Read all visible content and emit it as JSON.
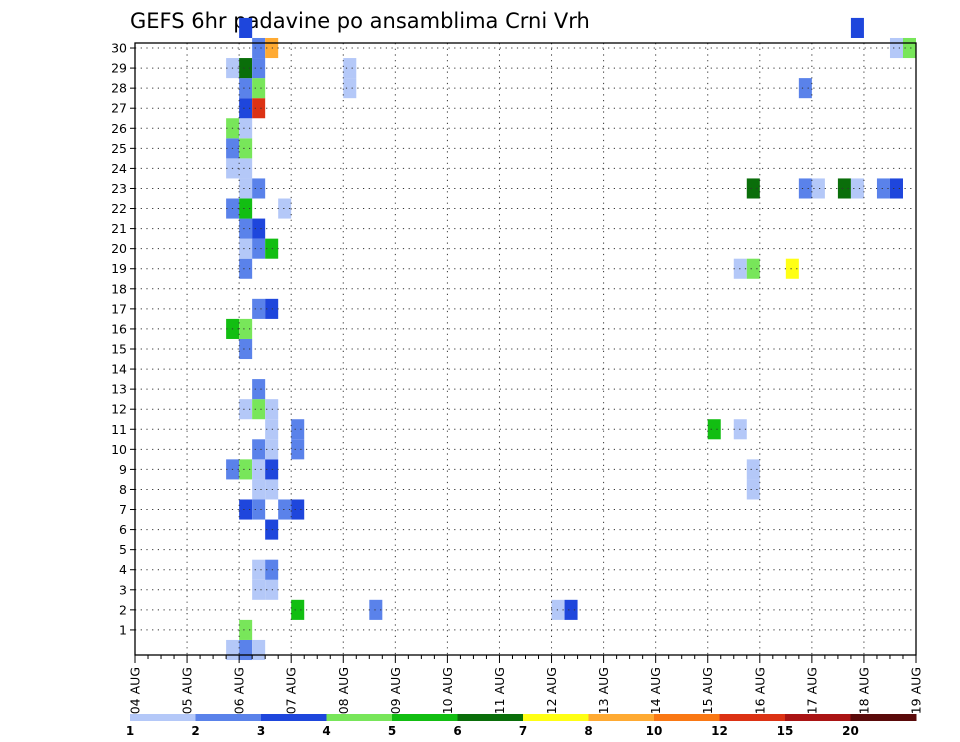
{
  "chart_data": {
    "type": "heatmap",
    "title": "GEFS 6hr padavine po ansamblima Crni Vrh",
    "xlabel": "",
    "ylabel": "",
    "x_tick_labels": [
      "04 AUG",
      "05 AUG",
      "06 AUG",
      "07 AUG",
      "08 AUG",
      "09 AUG",
      "10 AUG",
      "11 AUG",
      "12 AUG",
      "13 AUG",
      "14 AUG",
      "15 AUG",
      "16 AUG",
      "17 AUG",
      "18 AUG",
      "19 AUG"
    ],
    "x_time_step_hours": 6,
    "y_tick_labels": [
      "1",
      "2",
      "3",
      "4",
      "5",
      "6",
      "7",
      "8",
      "9",
      "10",
      "11",
      "12",
      "13",
      "14",
      "15",
      "16",
      "17",
      "18",
      "19",
      "20",
      "21",
      "22",
      "23",
      "24",
      "25",
      "26",
      "27",
      "28",
      "29",
      "30"
    ],
    "ylim": [
      0,
      30
    ],
    "grid": true,
    "legend_position": "bottom",
    "colorbar": {
      "tick_labels": [
        "1",
        "2",
        "3",
        "4",
        "5",
        "6",
        "7",
        "8",
        "10",
        "12",
        "15",
        "20"
      ],
      "colors": [
        "#b4c8f8",
        "#5a82ea",
        "#1e46dc",
        "#78e65a",
        "#12be12",
        "#0a6e0a",
        "#ffff14",
        "#ffaa32",
        "#fa7814",
        "#dc3214",
        "#aa1414",
        "#5a0a0a"
      ]
    },
    "cells": [
      {
        "t": 7,
        "m": 0,
        "level": 1
      },
      {
        "t": 8,
        "m": 0,
        "level": 2
      },
      {
        "t": 9,
        "m": 0,
        "level": 1
      },
      {
        "t": 8,
        "m": 1,
        "level": 4
      },
      {
        "t": 12,
        "m": 2,
        "level": 5
      },
      {
        "t": 9,
        "m": 3,
        "level": 1
      },
      {
        "t": 10,
        "m": 3,
        "level": 1
      },
      {
        "t": 9,
        "m": 4,
        "level": 1
      },
      {
        "t": 10,
        "m": 4,
        "level": 2
      },
      {
        "t": 10,
        "m": 6,
        "level": 3
      },
      {
        "t": 8,
        "m": 7,
        "level": 3
      },
      {
        "t": 9,
        "m": 7,
        "level": 2
      },
      {
        "t": 11,
        "m": 7,
        "level": 2
      },
      {
        "t": 12,
        "m": 7,
        "level": 3
      },
      {
        "t": 9,
        "m": 8,
        "level": 1
      },
      {
        "t": 10,
        "m": 8,
        "level": 1
      },
      {
        "t": 7,
        "m": 9,
        "level": 2
      },
      {
        "t": 8,
        "m": 9,
        "level": 4
      },
      {
        "t": 9,
        "m": 9,
        "level": 1
      },
      {
        "t": 10,
        "m": 9,
        "level": 3
      },
      {
        "t": 9,
        "m": 10,
        "level": 2
      },
      {
        "t": 10,
        "m": 10,
        "level": 1
      },
      {
        "t": 12,
        "m": 10,
        "level": 2
      },
      {
        "t": 10,
        "m": 11,
        "level": 1
      },
      {
        "t": 12,
        "m": 11,
        "level": 2
      },
      {
        "t": 8,
        "m": 12,
        "level": 1
      },
      {
        "t": 9,
        "m": 12,
        "level": 4
      },
      {
        "t": 10,
        "m": 12,
        "level": 1
      },
      {
        "t": 9,
        "m": 13,
        "level": 2
      },
      {
        "t": 8,
        "m": 15,
        "level": 2
      },
      {
        "t": 7,
        "m": 16,
        "level": 5
      },
      {
        "t": 8,
        "m": 16,
        "level": 4
      },
      {
        "t": 9,
        "m": 17,
        "level": 2
      },
      {
        "t": 10,
        "m": 17,
        "level": 3
      },
      {
        "t": 8,
        "m": 19,
        "level": 2
      },
      {
        "t": 8,
        "m": 20,
        "level": 1
      },
      {
        "t": 9,
        "m": 20,
        "level": 2
      },
      {
        "t": 10,
        "m": 20,
        "level": 5
      },
      {
        "t": 8,
        "m": 21,
        "level": 2
      },
      {
        "t": 9,
        "m": 21,
        "level": 3
      },
      {
        "t": 7,
        "m": 22,
        "level": 2
      },
      {
        "t": 8,
        "m": 22,
        "level": 5
      },
      {
        "t": 11,
        "m": 22,
        "level": 1
      },
      {
        "t": 8,
        "m": 23,
        "level": 1
      },
      {
        "t": 9,
        "m": 23,
        "level": 2
      },
      {
        "t": 7,
        "m": 24,
        "level": 1
      },
      {
        "t": 8,
        "m": 24,
        "level": 1
      },
      {
        "t": 7,
        "m": 25,
        "level": 2
      },
      {
        "t": 8,
        "m": 25,
        "level": 4
      },
      {
        "t": 7,
        "m": 26,
        "level": 4
      },
      {
        "t": 8,
        "m": 26,
        "level": 1
      },
      {
        "t": 8,
        "m": 27,
        "level": 3
      },
      {
        "t": 9,
        "m": 27,
        "level": 10
      },
      {
        "t": 8,
        "m": 28,
        "level": 2
      },
      {
        "t": 9,
        "m": 28,
        "level": 4
      },
      {
        "t": 16,
        "m": 28,
        "level": 1
      },
      {
        "t": 7,
        "m": 29,
        "level": 1
      },
      {
        "t": 8,
        "m": 29,
        "level": 6
      },
      {
        "t": 9,
        "m": 29,
        "level": 2
      },
      {
        "t": 16,
        "m": 29,
        "level": 1
      },
      {
        "t": 9,
        "m": 30,
        "level": 2
      },
      {
        "t": 10,
        "m": 30,
        "level": 8
      },
      {
        "t": 8,
        "m": 31,
        "level": 3
      },
      {
        "t": 18,
        "m": 2,
        "level": 2
      },
      {
        "t": 32,
        "m": 2,
        "level": 1
      },
      {
        "t": 33,
        "m": 2,
        "level": 3
      },
      {
        "t": 44,
        "m": 11,
        "level": 5
      },
      {
        "t": 46,
        "m": 11,
        "level": 1
      },
      {
        "t": 47,
        "m": 8,
        "level": 1
      },
      {
        "t": 47,
        "m": 9,
        "level": 1
      },
      {
        "t": 46,
        "m": 19,
        "level": 1
      },
      {
        "t": 47,
        "m": 19,
        "level": 4
      },
      {
        "t": 50,
        "m": 19,
        "level": 7
      },
      {
        "t": 47,
        "m": 23,
        "level": 6
      },
      {
        "t": 51,
        "m": 23,
        "level": 2
      },
      {
        "t": 52,
        "m": 23,
        "level": 1
      },
      {
        "t": 54,
        "m": 23,
        "level": 6
      },
      {
        "t": 55,
        "m": 23,
        "level": 1
      },
      {
        "t": 57,
        "m": 23,
        "level": 2
      },
      {
        "t": 58,
        "m": 23,
        "level": 3
      },
      {
        "t": 51,
        "m": 28,
        "level": 2
      },
      {
        "t": 55,
        "m": 31,
        "level": 3
      },
      {
        "t": 58,
        "m": 30,
        "level": 1
      },
      {
        "t": 59,
        "m": 30,
        "level": 4
      }
    ]
  }
}
